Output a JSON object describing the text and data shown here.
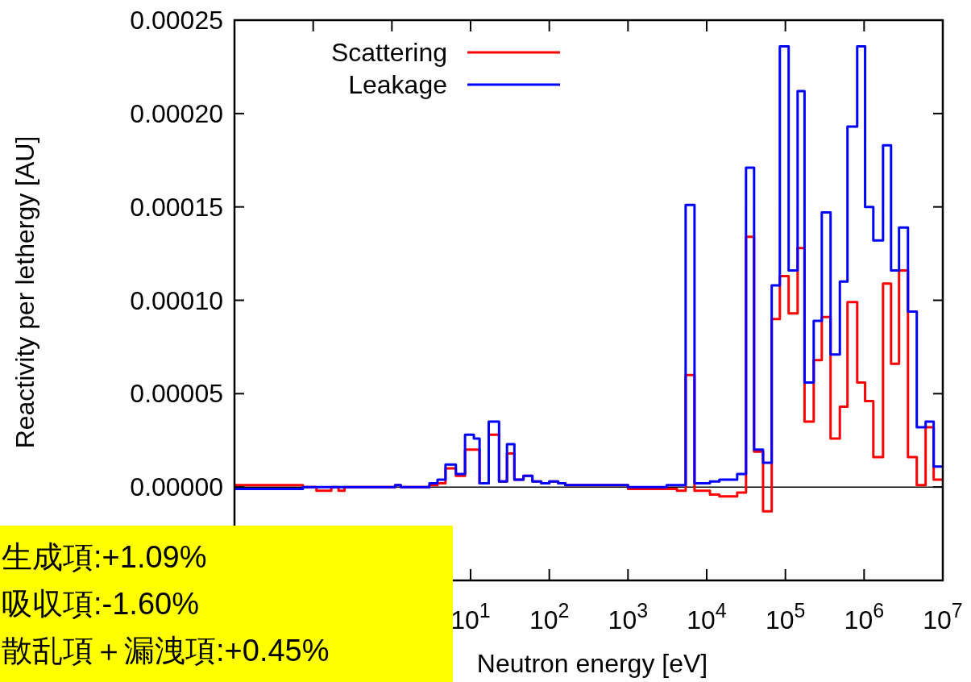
{
  "chart_data": {
    "type": "histogram",
    "xlabel": "Neutron energy [eV]",
    "ylabel": "Reactivity per lethergy [AU]",
    "log": "x",
    "legend": "top left",
    "xlim": [
      0.01,
      10000000
    ],
    "ylim": [
      -5e-05,
      0.00025
    ],
    "xticks": [
      {
        "value": 0.01,
        "label": null
      },
      {
        "value": 0.1,
        "label": null
      },
      {
        "value": 1,
        "label": null
      },
      {
        "value": 10,
        "label": "10$^{1}$"
      },
      {
        "value": 100,
        "label": "10$^{2}$"
      },
      {
        "value": 1000,
        "label": "10$^{3}$"
      },
      {
        "value": 10000,
        "label": "10$^{4}$"
      },
      {
        "value": 100000,
        "label": "10$^{5}$"
      },
      {
        "value": 1000000,
        "label": "10$^{6}$"
      },
      {
        "value": 10000000,
        "label": "10$^{7}$"
      }
    ],
    "yticks": [
      {
        "value": 0,
        "label": "0.00000"
      },
      {
        "value": 5e-05,
        "label": "0.00005"
      },
      {
        "value": 0.0001,
        "label": "0.00010"
      },
      {
        "value": 0.00015,
        "label": "0.00015"
      },
      {
        "value": 0.0002,
        "label": "0.00020"
      },
      {
        "value": 0.00025,
        "label": "0.00025"
      }
    ],
    "bins": [
      0.01,
      0.074,
      0.11,
      0.17,
      0.21,
      0.25,
      1.1,
      1.3,
      3.0,
      3.8,
      4.8,
      6.5,
      8.5,
      11,
      13,
      17,
      23,
      29,
      36,
      47,
      61,
      79,
      100,
      130,
      160,
      1000,
      3100,
      4200,
      5400,
      7000,
      11000,
      14500,
      19000,
      24400,
      31600,
      40000,
      52000,
      67000,
      85000,
      110000,
      143000,
      175000,
      229000,
      290000,
      375000,
      492000,
      615000,
      817000,
      1030000,
      1310000,
      1740000,
      2200000,
      2780000,
      3610000,
      4670000,
      6050000,
      7660000,
      10000000
    ],
    "series": [
      {
        "name": "Scattering",
        "color": "#ff0000",
        "values": [
          1e-06,
          0,
          -2e-06,
          0,
          -2e-06,
          0,
          1e-06,
          0,
          1e-06,
          2e-06,
          1e-05,
          6e-06,
          2e-05,
          2e-05,
          2e-06,
          2.8e-05,
          3e-06,
          1.8e-05,
          4e-06,
          6e-06,
          3e-06,
          2e-06,
          3e-06,
          2e-06,
          1e-06,
          -1e-06,
          -1e-06,
          -2e-06,
          6e-05,
          -2e-06,
          -4e-06,
          -5e-06,
          -5e-06,
          -3e-06,
          0.000134,
          1.9e-05,
          -1.3e-05,
          9e-05,
          0.000113,
          9.3e-05,
          0.000128,
          3.5e-05,
          6.8e-05,
          9.1e-05,
          2.6e-05,
          4.3e-05,
          9.9e-05,
          5.6e-05,
          4.6e-05,
          1.6e-05,
          0.000109,
          6.6e-05,
          0.000116,
          1.6e-05,
          1e-06,
          3.2e-05,
          4e-06
        ]
      },
      {
        "name": "Leakage",
        "color": "#0000ff",
        "values": [
          -1e-06,
          0,
          0,
          0,
          0,
          0,
          1e-06,
          0,
          2e-06,
          4e-06,
          1.2e-05,
          7e-06,
          2.8e-05,
          2.6e-05,
          2e-06,
          3.5e-05,
          3e-06,
          2.3e-05,
          4e-06,
          6e-06,
          3e-06,
          2e-06,
          3e-06,
          2e-06,
          1e-06,
          0,
          1e-06,
          1e-06,
          0.000151,
          2e-06,
          3e-06,
          4e-06,
          4e-06,
          7e-06,
          0.000171,
          2e-05,
          1.3e-05,
          0.000108,
          0.000236,
          0.000116,
          0.000212,
          5.6e-05,
          8.9e-05,
          0.000147,
          7.1e-05,
          0.00011,
          0.000193,
          0.000236,
          0.00015,
          0.000132,
          0.000183,
          0.000116,
          0.000139,
          9.4e-05,
          3.2e-05,
          3.5e-05,
          1.1e-05
        ]
      }
    ],
    "ref_lines": [
      {
        "axis": "y",
        "value": 0,
        "color": "#000000"
      }
    ],
    "annotations": [
      "生成項:+1.09%",
      "吸収項:-1.60%",
      "散乱項＋漏洩項:+0.45%"
    ]
  }
}
